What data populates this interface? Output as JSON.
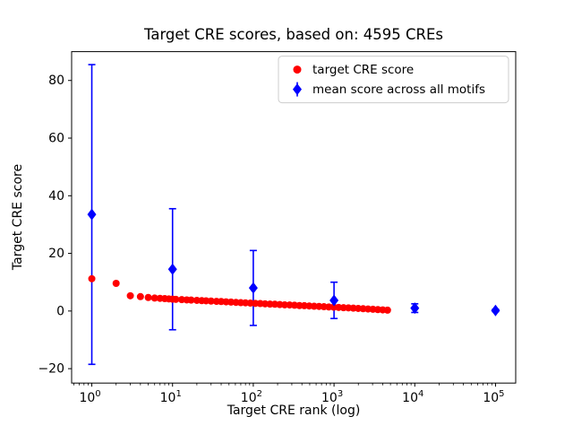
{
  "chart_data": {
    "type": "scatter",
    "title": "Target CRE scores, based on: 4595 CREs",
    "xlabel": "Target CRE rank (log)",
    "ylabel": "Target CRE score",
    "x_scale": "log",
    "xlim_log": [
      -0.25,
      5.25
    ],
    "ylim": [
      -25,
      90
    ],
    "y_ticks": [
      -20,
      0,
      20,
      40,
      60,
      80
    ],
    "x_tick_exponents": [
      0,
      1,
      2,
      3,
      4,
      5
    ],
    "grid": false,
    "colors": {
      "target": "#ff0000",
      "mean": "#0000ff",
      "legend_border": "#cccccc"
    },
    "legend": {
      "position": "upper right",
      "entries": [
        {
          "label": "target CRE score",
          "marker": "circle",
          "color": "#ff0000"
        },
        {
          "label": "mean score across all motifs",
          "marker": "diamond",
          "color": "#0000ff"
        }
      ]
    },
    "series": [
      {
        "name": "target CRE score",
        "type": "scatter",
        "marker": "circle",
        "color": "#ff0000",
        "points": [
          [
            1,
            11.2
          ],
          [
            2,
            9.6
          ],
          [
            3,
            5.3
          ],
          [
            4,
            5.0
          ],
          [
            5,
            4.7
          ],
          [
            6,
            4.5
          ],
          [
            7,
            4.4
          ],
          [
            8,
            4.3
          ],
          [
            9,
            4.2
          ],
          [
            10,
            4.1
          ],
          [
            11,
            4.05
          ],
          [
            13,
            3.95
          ],
          [
            15,
            3.85
          ],
          [
            17,
            3.8
          ],
          [
            20,
            3.7
          ],
          [
            23,
            3.6
          ],
          [
            26,
            3.55
          ],
          [
            30,
            3.45
          ],
          [
            35,
            3.35
          ],
          [
            40,
            3.3
          ],
          [
            46,
            3.2
          ],
          [
            53,
            3.1
          ],
          [
            61,
            3.0
          ],
          [
            70,
            2.9
          ],
          [
            80,
            2.85
          ],
          [
            92,
            2.75
          ],
          [
            106,
            2.65
          ],
          [
            122,
            2.6
          ],
          [
            140,
            2.5
          ],
          [
            161,
            2.4
          ],
          [
            185,
            2.35
          ],
          [
            213,
            2.25
          ],
          [
            245,
            2.15
          ],
          [
            282,
            2.1
          ],
          [
            324,
            2.0
          ],
          [
            373,
            1.9
          ],
          [
            429,
            1.85
          ],
          [
            493,
            1.75
          ],
          [
            567,
            1.65
          ],
          [
            652,
            1.6
          ],
          [
            750,
            1.5
          ],
          [
            862,
            1.4
          ],
          [
            991,
            1.35
          ],
          [
            1140,
            1.25
          ],
          [
            1311,
            1.15
          ],
          [
            1508,
            1.1
          ],
          [
            1734,
            1.0
          ],
          [
            1994,
            0.9
          ],
          [
            2293,
            0.8
          ],
          [
            2637,
            0.7
          ],
          [
            3033,
            0.6
          ],
          [
            3488,
            0.5
          ],
          [
            4011,
            0.4
          ],
          [
            4595,
            0.3
          ]
        ]
      },
      {
        "name": "mean score across all motifs",
        "type": "errorbar",
        "marker": "diamond",
        "color": "#0000ff",
        "x": [
          1,
          10,
          100,
          1000,
          10000,
          100000
        ],
        "mean": [
          33.5,
          14.5,
          8.0,
          3.7,
          1.0,
          0.2
        ],
        "err": [
          52.0,
          21.0,
          13.0,
          6.3,
          1.5,
          0.4
        ]
      }
    ]
  }
}
